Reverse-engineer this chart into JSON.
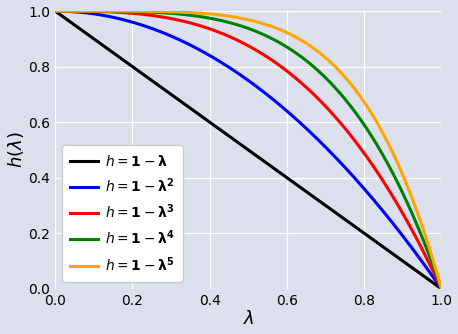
{
  "title": "",
  "xlabel": "$\\lambda$",
  "ylabel": "$h(\\lambda)$",
  "xlim": [
    0.0,
    1.0
  ],
  "ylim": [
    0.0,
    1.0
  ],
  "curves": [
    {
      "power": 1,
      "color": "#000000",
      "label": "$h=\\mathbf{1}-\\boldsymbol{\\lambda}$"
    },
    {
      "power": 2,
      "color": "#0000ff",
      "label": "$h=\\mathbf{1}-\\boldsymbol{\\lambda}^\\mathbf{2}$"
    },
    {
      "power": 3,
      "color": "#ff0000",
      "label": "$h=\\mathbf{1}-\\boldsymbol{\\lambda}^\\mathbf{3}$"
    },
    {
      "power": 4,
      "color": "#008000",
      "label": "$h=\\mathbf{1}-\\boldsymbol{\\lambda}^\\mathbf{4}$"
    },
    {
      "power": 5,
      "color": "#ffa500",
      "label": "$h=\\mathbf{1}-\\boldsymbol{\\lambda}^\\mathbf{5}$"
    }
  ],
  "background_color": "#dce0ec",
  "axes_facecolor": "#dce0ec",
  "linewidth": 2.2,
  "xticks": [
    0.0,
    0.2,
    0.4,
    0.6,
    0.8,
    1.0
  ],
  "yticks": [
    0.0,
    0.2,
    0.4,
    0.6,
    0.8,
    1.0
  ],
  "legend_loc": "lower left",
  "legend_fontsize": 10,
  "xlabel_fontsize": 13,
  "ylabel_fontsize": 13,
  "tick_fontsize": 10,
  "grid_color": "#ffffff",
  "grid_linewidth": 0.9
}
